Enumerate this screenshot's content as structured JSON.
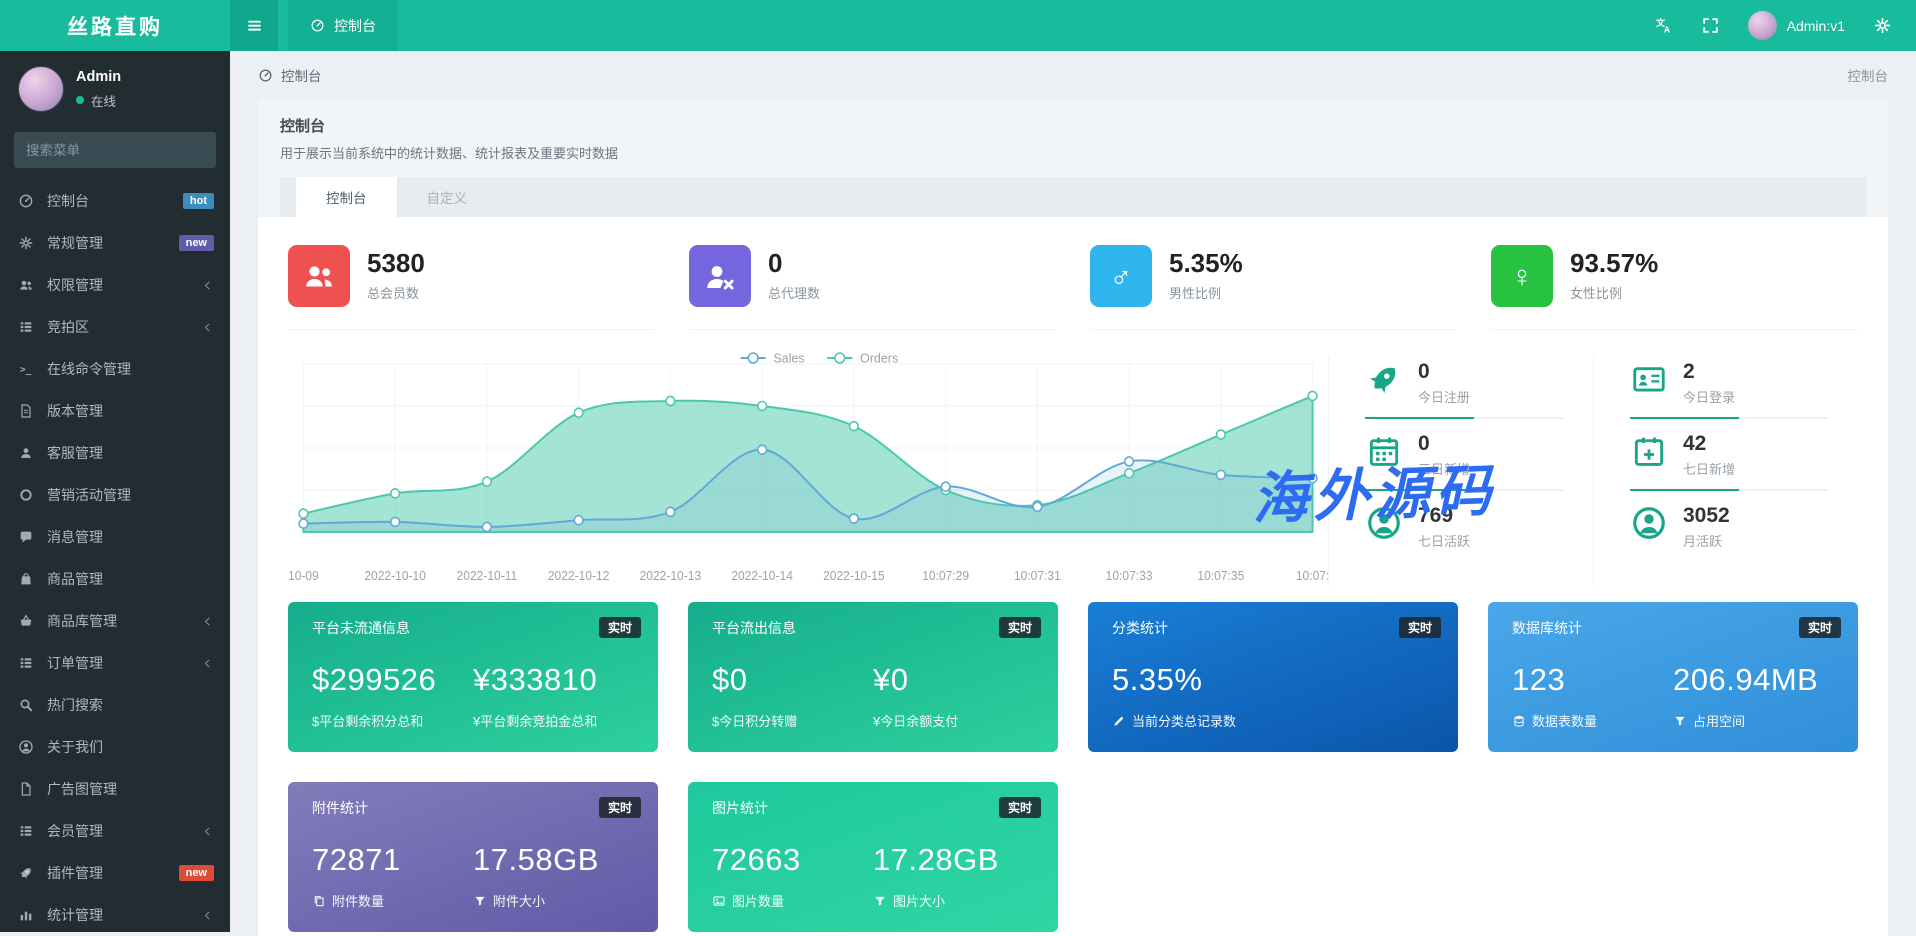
{
  "app": {
    "logo": "丝路直购",
    "navbar": {
      "active_tab": "控制台",
      "admin_label": "Admin:v1"
    }
  },
  "sidebar": {
    "user": {
      "name": "Admin",
      "status": "在线"
    },
    "search_placeholder": "搜索菜单",
    "menu": [
      {
        "label": "控制台",
        "icon": "speedometer",
        "badge": {
          "text": "hot",
          "color": "#3c8dbc"
        }
      },
      {
        "label": "常规管理",
        "icon": "cogs",
        "badge": {
          "text": "new",
          "color": "#605ca8"
        }
      },
      {
        "label": "权限管理",
        "icon": "users",
        "arrow": true
      },
      {
        "label": "竞拍区",
        "icon": "th-list",
        "arrow": true
      },
      {
        "label": "在线命令管理",
        "icon": "terminal"
      },
      {
        "label": "版本管理",
        "icon": "file-text"
      },
      {
        "label": "客服管理",
        "icon": "user"
      },
      {
        "label": "营销活动管理",
        "icon": "circle-o"
      },
      {
        "label": "消息管理",
        "icon": "comment"
      },
      {
        "label": "商品管理",
        "icon": "shopping-bag"
      },
      {
        "label": "商品库管理",
        "icon": "basket",
        "arrow": true
      },
      {
        "label": "订单管理",
        "icon": "th-list",
        "arrow": true
      },
      {
        "label": "热门搜索",
        "icon": "search"
      },
      {
        "label": "关于我们",
        "icon": "user-circle"
      },
      {
        "label": "广告图管理",
        "icon": "file"
      },
      {
        "label": "会员管理",
        "icon": "th-list",
        "arrow": true
      },
      {
        "label": "插件管理",
        "icon": "rocket",
        "badge": {
          "text": "new",
          "color": "#dd4b39"
        }
      },
      {
        "label": "统计管理",
        "icon": "bar-chart",
        "arrow": true
      }
    ]
  },
  "breadcrumb": {
    "left": "控制台",
    "right": "控制台"
  },
  "panel": {
    "title": "控制台",
    "description": "用于展示当前系统中的统计数据、统计报表及重要实时数据",
    "tabs": [
      {
        "label": "控制台"
      },
      {
        "label": "自定义"
      }
    ]
  },
  "stats": [
    {
      "value": "5380",
      "label": "总会员数",
      "color": "#ef5050",
      "icon": "users"
    },
    {
      "value": "0",
      "label": "总代理数",
      "color": "#7566dd",
      "icon": "user-x"
    },
    {
      "value": "5.35%",
      "label": "男性比例",
      "color": "#2fb5ee",
      "icon": "male"
    },
    {
      "value": "93.57%",
      "label": "女性比例",
      "color": "#27c240",
      "icon": "female"
    }
  ],
  "chart_data": {
    "type": "area",
    "x": [
      "10-09",
      "2022-10-10",
      "2022-10-11",
      "2022-10-12",
      "2022-10-13",
      "2022-10-14",
      "2022-10-15",
      "10:07:29",
      "10:07:31",
      "10:07:33",
      "10:07:35",
      "10:07:"
    ],
    "series": [
      {
        "name": "Sales",
        "color": "#5fa8d8",
        "values": [
          5,
          6,
          3,
          7,
          12,
          49,
          8,
          27,
          15,
          42,
          34,
          32
        ]
      },
      {
        "name": "Orders",
        "color": "#49c9a9",
        "values": [
          11,
          23,
          30,
          71,
          78,
          75,
          63,
          25,
          16,
          35,
          58,
          81
        ]
      }
    ],
    "ylim": [
      0,
      100
    ],
    "grid": true,
    "legend_position": "top-center"
  },
  "mini_stats": {
    "columns": [
      [
        {
          "icon": "rocket",
          "value": "0",
          "label": "今日注册",
          "divider": true
        },
        {
          "icon": "calendar",
          "value": "0",
          "label": "三日新增",
          "divider": true
        },
        {
          "icon": "user-circle",
          "value": "769",
          "label": "七日活跃",
          "divider": false
        }
      ],
      [
        {
          "icon": "id-card",
          "value": "2",
          "label": "今日登录",
          "divider": true
        },
        {
          "icon": "calendar-plus",
          "value": "42",
          "label": "七日新增",
          "divider": true
        },
        {
          "icon": "user-circle",
          "value": "3052",
          "label": "月活跃",
          "divider": false
        }
      ]
    ]
  },
  "cards": [
    {
      "title": "平台未流通信息",
      "badge": "实时",
      "gradient": [
        "#15ad8e",
        "#2dd19d"
      ],
      "metrics": [
        {
          "value": "$299526",
          "label": "$平台剩余积分总和"
        },
        {
          "value": "¥333810",
          "label": "¥平台剩余竞拍金总和"
        }
      ]
    },
    {
      "title": "平台流出信息",
      "badge": "实时",
      "gradient": [
        "#15ad8e",
        "#2dd19d"
      ],
      "metrics": [
        {
          "value": "$0",
          "label": "$今日积分转赠"
        },
        {
          "value": "¥0",
          "label": "¥今日余额支付"
        }
      ]
    },
    {
      "title": "分类统计",
      "badge": "实时",
      "gradient": [
        "#1a7fd6",
        "#0b55ab"
      ],
      "metrics": [
        {
          "value": "5.35%",
          "icon": "pencil",
          "label": "当前分类总记录数"
        }
      ]
    },
    {
      "title": "数据库统计",
      "badge": "实时",
      "gradient": [
        "#4aa7e9",
        "#2f8fd8"
      ],
      "metrics": [
        {
          "value": "123",
          "icon": "database",
          "label": "数据表数量"
        },
        {
          "value": "206.94MB",
          "icon": "funnel",
          "label": "占用空间"
        }
      ]
    },
    {
      "title": "附件统计",
      "badge": "实时",
      "gradient": [
        "#837cba",
        "#615aa7"
      ],
      "metrics": [
        {
          "value": "72871",
          "icon": "copy",
          "label": "附件数量"
        },
        {
          "value": "17.58GB",
          "icon": "funnel",
          "label": "附件大小"
        }
      ]
    },
    {
      "title": "图片统计",
      "badge": "实时",
      "gradient": [
        "#1fc89d",
        "#2fd6a4"
      ],
      "metrics": [
        {
          "value": "72663",
          "icon": "image",
          "label": "图片数量"
        },
        {
          "value": "17.28GB",
          "icon": "funnel",
          "label": "图片大小"
        }
      ]
    }
  ],
  "watermark": "海外源码",
  "colors": {
    "navbar": "#18bc9c",
    "sidebar": "#222d32",
    "accent": "#18a689"
  }
}
